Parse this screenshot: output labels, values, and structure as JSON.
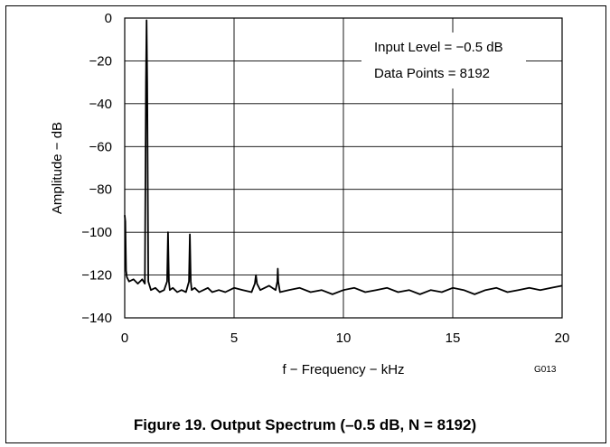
{
  "chart_data": {
    "type": "line",
    "title": "",
    "xlabel": "f − Frequency − kHz",
    "ylabel": "Amplitude − dB",
    "xlim": [
      0,
      20
    ],
    "ylim": [
      -140,
      0
    ],
    "xticks": [
      0,
      5,
      10,
      15,
      20
    ],
    "xtick_labels": [
      "0",
      "5",
      "10",
      "15",
      "20"
    ],
    "yticks": [
      0,
      -20,
      -40,
      -60,
      -80,
      -100,
      -120,
      -140
    ],
    "ytick_labels": [
      "0",
      "−20",
      "−40",
      "−60",
      "−80",
      "−100",
      "−120",
      "−140"
    ],
    "grid": true,
    "annotations": [
      "Input Level = −0.5 dB",
      "Data Points = 8192"
    ],
    "figure_id": "G013",
    "series": [
      {
        "color": "#000000",
        "x": [
          0.0,
          0.03,
          0.06,
          0.1,
          0.2,
          0.4,
          0.6,
          0.8,
          0.92,
          0.97,
          1.0,
          1.03,
          1.08,
          1.2,
          1.4,
          1.6,
          1.8,
          1.94,
          1.98,
          2.02,
          2.06,
          2.2,
          2.4,
          2.6,
          2.8,
          2.94,
          2.98,
          3.02,
          3.06,
          3.2,
          3.4,
          3.6,
          3.8,
          4.0,
          4.3,
          4.6,
          5.0,
          5.4,
          5.8,
          5.95,
          6.0,
          6.05,
          6.2,
          6.6,
          6.9,
          6.98,
          7.0,
          7.02,
          7.1,
          7.5,
          8.0,
          8.5,
          9.0,
          9.5,
          10.0,
          10.5,
          11.0,
          11.5,
          12.0,
          12.5,
          13.0,
          13.5,
          14.0,
          14.5,
          15.0,
          15.5,
          16.0,
          16.5,
          17.0,
          17.5,
          18.0,
          18.5,
          19.0,
          19.5,
          20.0
        ],
        "y": [
          -92,
          -95,
          -118,
          -121,
          -123,
          -122,
          -124,
          -122,
          -124,
          -30,
          -1,
          -30,
          -123,
          -127,
          -126,
          -128,
          -127,
          -123,
          -100,
          -123,
          -127,
          -126,
          -128,
          -127,
          -128,
          -123,
          -101,
          -123,
          -127,
          -126,
          -128,
          -127,
          -126,
          -128,
          -127,
          -128,
          -126,
          -127,
          -128,
          -124,
          -120,
          -124,
          -127,
          -125,
          -127,
          -123,
          -117,
          -123,
          -128,
          -127,
          -126,
          -128,
          -127,
          -129,
          -127,
          -126,
          -128,
          -127,
          -126,
          -128,
          -127,
          -129,
          -127,
          -128,
          -126,
          -127,
          -129,
          -127,
          -126,
          -128,
          -127,
          -126,
          -127,
          -126,
          -125
        ]
      }
    ]
  },
  "caption": "Figure 19. Output Spectrum (–0.5 dB, N = 8192)"
}
